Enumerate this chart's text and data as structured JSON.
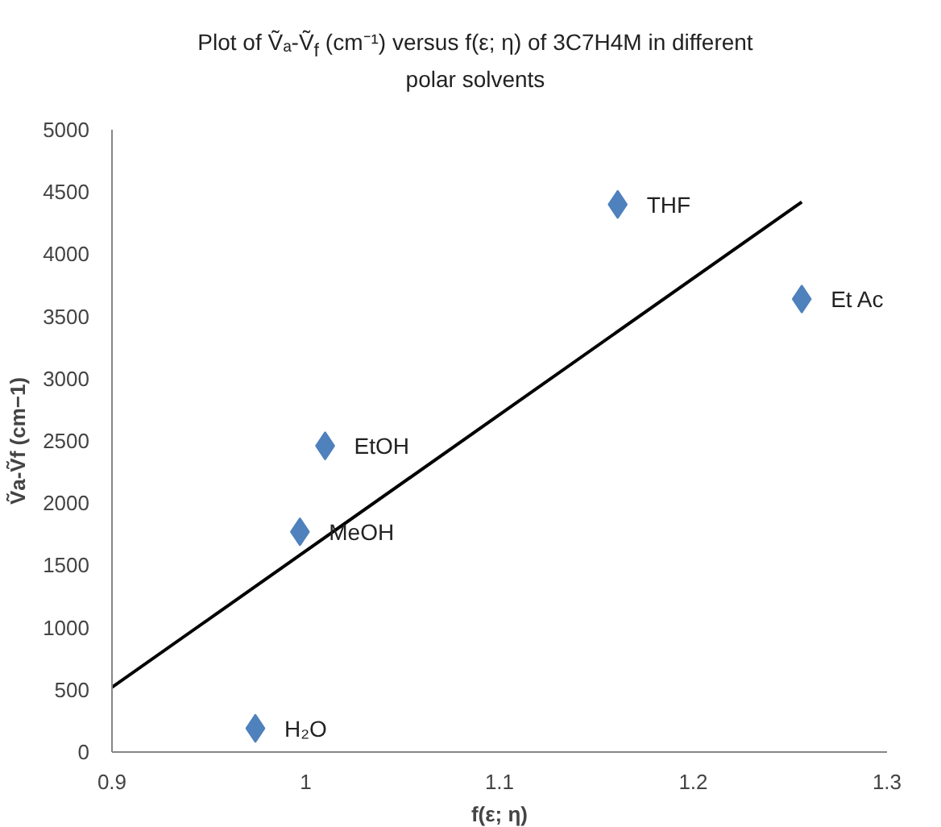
{
  "chart_data": {
    "type": "scatter",
    "title": "Plot of Ṽₐ-Ṽ$_{f}$ (cm⁻¹) versus f(ε; η) of 3C7H4M in different polar solvents",
    "xlabel": "f(ε; η)",
    "ylabel": "Ṽa-Ṽf (cm−1)",
    "series": [
      {
        "color": "#4f81bd",
        "marker": "diamond",
        "x": [
          0.974,
          0.997,
          1.01,
          1.161,
          1.256
        ],
        "values": [
          190,
          1770,
          2460,
          4400,
          3640
        ]
      },
      {
        "type": "line",
        "color": "#000000",
        "marker": "none",
        "line_style": "solid",
        "x": [
          0.9,
          1.256
        ],
        "values": [
          520,
          4420
        ]
      }
    ],
    "annotations": [
      {
        "text": "H₂O",
        "x": 0.974,
        "y": 190
      },
      {
        "text": "MeOH",
        "x": 0.997,
        "y": 1770
      },
      {
        "text": "EtOH",
        "x": 1.01,
        "y": 2460
      },
      {
        "text": "THF",
        "x": 1.161,
        "y": 4400
      },
      {
        "text": "Et Ac",
        "x": 1.256,
        "y": 3640
      }
    ],
    "xlim": [
      0.9,
      1.3
    ],
    "xticks": [
      0.9,
      1,
      1.1,
      1.2,
      1.3
    ],
    "ylim": [
      0,
      5000
    ],
    "yticks": [
      0,
      500,
      1000,
      1500,
      2000,
      2500,
      3000,
      3500,
      4000,
      4500,
      5000
    ],
    "grid": false
  }
}
